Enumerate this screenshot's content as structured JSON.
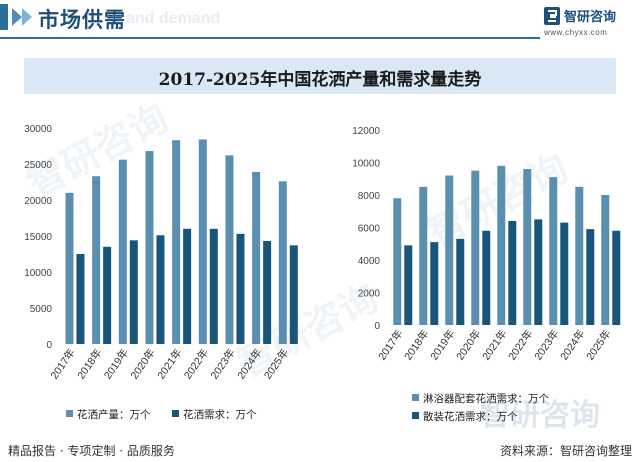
{
  "header": {
    "title": "市场供需",
    "subtitle_ghost": "and demand"
  },
  "brand": {
    "name": "智研咨询",
    "url": "www.chyxx.com"
  },
  "chart_title": "2017-2025年中国花洒产量和需求量走势",
  "watermark": "智研咨询",
  "chart_data": [
    {
      "type": "bar",
      "categories": [
        "2017年",
        "2018年",
        "2019年",
        "2020年",
        "2021年",
        "2022年",
        "2023年",
        "2024年",
        "2025年"
      ],
      "series": [
        {
          "name": "花洒产量：万个",
          "color": "#5b8fb0",
          "values": [
            21000,
            23300,
            25600,
            26800,
            28300,
            28400,
            26200,
            23900,
            22600
          ]
        },
        {
          "name": "花洒需求：万个",
          "color": "#17557a",
          "values": [
            12500,
            13500,
            14400,
            15100,
            16000,
            16000,
            15300,
            14300,
            13700
          ]
        }
      ],
      "ylim": [
        0,
        30000
      ],
      "yticks": [
        "0",
        "5000",
        "10000",
        "15000",
        "20000",
        "25000",
        "30000"
      ],
      "legend_position": "bottom"
    },
    {
      "type": "bar",
      "categories": [
        "2017年",
        "2018年",
        "2019年",
        "2020年",
        "2021年",
        "2022年",
        "2023年",
        "2024年",
        "2025年"
      ],
      "series": [
        {
          "name": "淋浴器配套花洒需求：万个",
          "color": "#5b8fb0",
          "values": [
            7800,
            8500,
            9200,
            9500,
            9800,
            9600,
            9100,
            8500,
            8000
          ]
        },
        {
          "name": "散装花洒需求：万个",
          "color": "#17557a",
          "values": [
            4900,
            5100,
            5300,
            5800,
            6400,
            6500,
            6300,
            5900,
            5800
          ]
        }
      ],
      "ylim": [
        0,
        12000
      ],
      "yticks": [
        "0",
        "2000",
        "4000",
        "6000",
        "8000",
        "10000",
        "12000"
      ],
      "legend_position": "bottom"
    }
  ],
  "footer": {
    "left": "精品报告 · 专项定制 · 品质服务",
    "right": "资料来源：智研咨询整理"
  }
}
